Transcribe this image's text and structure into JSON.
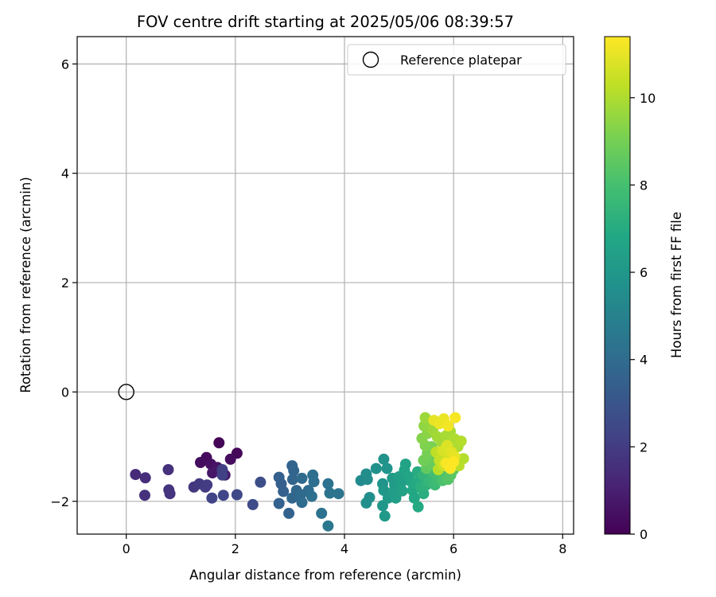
{
  "chart_data": {
    "type": "scatter",
    "title": "FOV centre drift starting at 2025/05/06 08:39:57",
    "xlabel": "Angular distance from reference (arcmin)",
    "ylabel": "Rotation from reference (arcmin)",
    "xlim": [
      -0.9,
      8.2
    ],
    "ylim": [
      -2.6,
      6.5
    ],
    "xticks": [
      0,
      2,
      4,
      6,
      8
    ],
    "yticks": [
      -2,
      0,
      2,
      4,
      6
    ],
    "grid": true,
    "legend": {
      "position": "upper-right",
      "entries": [
        {
          "label": "Reference platepar",
          "marker": "hollow-circle"
        }
      ]
    },
    "colorbar": {
      "label": "Hours from first FF file",
      "colormap": "viridis",
      "range": [
        0,
        11.4
      ],
      "ticks": [
        0,
        2,
        4,
        6,
        8,
        10
      ]
    },
    "reference_point": {
      "x": 0,
      "y": 0
    },
    "series": [
      {
        "points": [
          [
            1.7,
            -0.93,
            0.1
          ],
          [
            2.03,
            -1.12,
            0.2
          ],
          [
            1.47,
            -1.2,
            0.3
          ],
          [
            1.91,
            -1.23,
            0.35
          ],
          [
            1.36,
            -1.29,
            0.4
          ],
          [
            1.55,
            -1.32,
            0.5
          ],
          [
            1.67,
            -1.38,
            0.6
          ],
          [
            1.58,
            -1.48,
            0.7
          ],
          [
            1.81,
            -1.52,
            0.8
          ],
          [
            0.17,
            -1.51,
            1.4
          ],
          [
            0.35,
            -1.57,
            1.5
          ],
          [
            0.77,
            -1.42,
            1.6
          ],
          [
            0.34,
            -1.89,
            1.6
          ],
          [
            0.78,
            -1.79,
            1.7
          ],
          [
            0.8,
            -1.86,
            1.7
          ],
          [
            1.24,
            -1.74,
            1.8
          ],
          [
            1.34,
            -1.68,
            1.9
          ],
          [
            1.45,
            -1.74,
            2.0
          ],
          [
            1.48,
            -1.7,
            2.0
          ],
          [
            1.76,
            -1.42,
            2.1
          ],
          [
            1.76,
            -1.52,
            2.2
          ],
          [
            1.57,
            -1.94,
            2.3
          ],
          [
            1.78,
            -1.89,
            2.4
          ],
          [
            2.03,
            -1.88,
            2.5
          ],
          [
            2.32,
            -2.06,
            2.6
          ],
          [
            2.46,
            -1.65,
            2.7
          ],
          [
            2.8,
            -1.56,
            3.4
          ],
          [
            2.84,
            -1.68,
            3.4
          ],
          [
            2.8,
            -2.04,
            3.5
          ],
          [
            2.88,
            -1.82,
            3.5
          ],
          [
            2.98,
            -2.22,
            3.6
          ],
          [
            3.04,
            -1.35,
            3.6
          ],
          [
            3.07,
            -1.44,
            3.7
          ],
          [
            3.05,
            -1.6,
            3.7
          ],
          [
            3.12,
            -1.8,
            3.8
          ],
          [
            3.04,
            -1.94,
            3.8
          ],
          [
            3.22,
            -1.58,
            3.9
          ],
          [
            3.2,
            -1.88,
            3.9
          ],
          [
            3.22,
            -2.02,
            4.0
          ],
          [
            3.34,
            -1.8,
            4.0
          ],
          [
            3.42,
            -1.52,
            4.1
          ],
          [
            3.44,
            -1.64,
            4.1
          ],
          [
            3.4,
            -1.91,
            4.2
          ],
          [
            3.58,
            -2.22,
            4.3
          ],
          [
            3.7,
            -1.68,
            4.3
          ],
          [
            3.73,
            -1.85,
            4.4
          ],
          [
            3.89,
            -1.86,
            4.4
          ],
          [
            3.7,
            -2.45,
            4.5
          ],
          [
            4.3,
            -1.62,
            5.4
          ],
          [
            4.4,
            -1.5,
            5.5
          ],
          [
            4.42,
            -1.6,
            5.5
          ],
          [
            4.4,
            -2.03,
            5.6
          ],
          [
            4.46,
            -1.93,
            5.6
          ],
          [
            4.58,
            -1.4,
            5.7
          ],
          [
            4.72,
            -1.23,
            5.8
          ],
          [
            4.78,
            -1.4,
            5.9
          ],
          [
            4.7,
            -1.68,
            5.9
          ],
          [
            4.72,
            -1.8,
            6.0
          ],
          [
            4.7,
            -2.08,
            6.0
          ],
          [
            4.74,
            -2.27,
            6.1
          ],
          [
            4.8,
            -1.94,
            6.1
          ],
          [
            4.88,
            -1.58,
            6.2
          ],
          [
            4.92,
            -1.7,
            6.2
          ],
          [
            4.9,
            -1.82,
            6.3
          ],
          [
            4.94,
            -1.94,
            6.3
          ],
          [
            5.0,
            -1.55,
            6.4
          ],
          [
            5.04,
            -1.66,
            6.4
          ],
          [
            5.06,
            -1.81,
            6.5
          ],
          [
            5.1,
            -1.43,
            6.6
          ],
          [
            5.12,
            -1.32,
            6.6
          ],
          [
            5.18,
            -1.55,
            6.7
          ],
          [
            5.22,
            -1.64,
            6.7
          ],
          [
            5.25,
            -1.8,
            6.8
          ],
          [
            5.28,
            -1.94,
            6.8
          ],
          [
            5.35,
            -2.1,
            6.9
          ],
          [
            5.3,
            -1.68,
            6.9
          ],
          [
            5.34,
            -1.46,
            7.0
          ],
          [
            5.38,
            -1.6,
            7.0
          ],
          [
            5.45,
            -1.86,
            7.1
          ],
          [
            5.4,
            -1.74,
            7.2
          ],
          [
            5.5,
            -1.7,
            7.3
          ],
          [
            5.44,
            -1.52,
            7.4
          ],
          [
            5.55,
            -1.64,
            7.5
          ],
          [
            5.6,
            -1.58,
            7.6
          ],
          [
            5.66,
            -1.7,
            7.7
          ],
          [
            5.7,
            -1.62,
            7.8
          ],
          [
            5.65,
            -1.48,
            7.9
          ],
          [
            5.75,
            -1.55,
            8.0
          ],
          [
            5.8,
            -1.62,
            8.1
          ],
          [
            5.86,
            -1.5,
            8.2
          ],
          [
            5.9,
            -1.6,
            8.3
          ],
          [
            5.95,
            -1.52,
            8.4
          ],
          [
            6.0,
            -1.42,
            8.5
          ],
          [
            5.5,
            -1.4,
            8.6
          ],
          [
            5.58,
            -1.32,
            8.7
          ],
          [
            5.62,
            -1.22,
            8.8
          ],
          [
            5.45,
            -1.25,
            8.9
          ],
          [
            5.52,
            -1.12,
            9.0
          ],
          [
            5.6,
            -1.0,
            9.1
          ],
          [
            5.48,
            -0.98,
            9.2
          ],
          [
            5.42,
            -0.85,
            9.3
          ],
          [
            5.52,
            -0.76,
            9.4
          ],
          [
            5.46,
            -0.62,
            9.5
          ],
          [
            5.56,
            -0.55,
            9.6
          ],
          [
            5.48,
            -0.47,
            9.7
          ],
          [
            5.62,
            -0.7,
            9.7
          ],
          [
            5.7,
            -0.82,
            9.8
          ],
          [
            5.78,
            -0.92,
            9.8
          ],
          [
            5.86,
            -0.8,
            9.9
          ],
          [
            5.94,
            -0.72,
            9.9
          ],
          [
            6.02,
            -0.86,
            10.0
          ],
          [
            6.08,
            -1.0,
            10.0
          ],
          [
            6.14,
            -0.9,
            10.1
          ],
          [
            6.18,
            -1.22,
            10.1
          ],
          [
            6.1,
            -1.35,
            10.2
          ],
          [
            5.72,
            -1.42,
            10.2
          ],
          [
            5.68,
            -1.1,
            10.3
          ],
          [
            5.74,
            -1.25,
            10.4
          ],
          [
            5.82,
            -1.35,
            10.5
          ],
          [
            5.9,
            -1.22,
            10.6
          ],
          [
            5.8,
            -1.08,
            10.7
          ],
          [
            5.88,
            -0.98,
            10.8
          ],
          [
            5.96,
            -1.1,
            10.9
          ],
          [
            6.02,
            -1.18,
            11.0
          ],
          [
            5.64,
            -0.52,
            11.0
          ],
          [
            5.74,
            -0.58,
            11.1
          ],
          [
            5.82,
            -0.49,
            11.1
          ],
          [
            5.9,
            -0.62,
            11.2
          ],
          [
            6.03,
            -0.47,
            11.3
          ],
          [
            5.86,
            -1.3,
            11.3
          ],
          [
            5.94,
            -1.4,
            11.4
          ],
          [
            6.0,
            -1.28,
            11.4
          ]
        ]
      }
    ]
  }
}
